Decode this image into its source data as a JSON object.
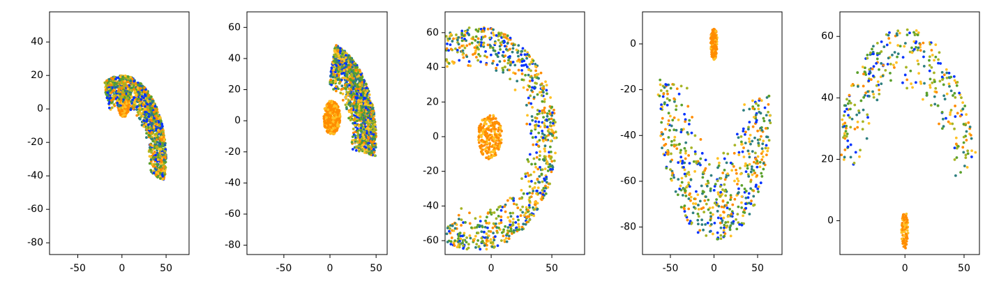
{
  "palette": [
    "#0433ff",
    "#ff8c00",
    "#2e7f7f",
    "#5aa02c",
    "#a6b425",
    "#ffc125"
  ],
  "chart_data": [
    {
      "type": "scatter",
      "title": "",
      "xlabel": "",
      "ylabel": "",
      "xlim": [
        -82,
        76
      ],
      "ylim": [
        -87,
        58
      ],
      "xticks": [
        -50,
        0,
        50
      ],
      "yticks": [
        -80,
        -60,
        -40,
        -20,
        0,
        20,
        40
      ],
      "grid": false,
      "shape": {
        "kind": "horseshoe",
        "center": [
          0,
          -30
        ],
        "radius_inner": 30,
        "radius_outer": 50,
        "y_scale": 1.0,
        "arc_start_deg": -15,
        "arc_end_deg": 115,
        "cluster_center": [
          2,
          5
        ],
        "cluster_radius": [
          7,
          10
        ],
        "point_count": 1700
      },
      "notes": "Dense ring of points opening toward upper-right, with compact orange cluster near origin."
    },
    {
      "type": "scatter",
      "title": "",
      "xlabel": "",
      "ylabel": "",
      "xlim": [
        -90,
        62
      ],
      "ylim": [
        -86,
        70
      ],
      "xticks": [
        -50,
        0,
        50
      ],
      "yticks": [
        -80,
        -60,
        -40,
        -20,
        0,
        20,
        40,
        60
      ],
      "grid": false,
      "shape": {
        "kind": "horseshoe",
        "center": [
          -10,
          -12
        ],
        "radius_inner": 32,
        "radius_outer": 60,
        "y_scale": 1.05,
        "arc_start_deg": -10,
        "arc_end_deg": 75,
        "cluster_center": [
          2,
          2
        ],
        "cluster_radius": [
          9,
          11
        ],
        "point_count": 1800
      },
      "notes": "Large C-shaped distribution opening toward right."
    },
    {
      "type": "scatter",
      "title": "",
      "xlabel": "",
      "ylabel": "",
      "xlim": [
        -38,
        77
      ],
      "ylim": [
        -68,
        72
      ],
      "xticks": [
        0,
        50
      ],
      "yticks": [
        -60,
        -40,
        -20,
        0,
        20,
        40,
        60
      ],
      "grid": false,
      "shape": {
        "kind": "crescent",
        "center": [
          -12,
          -1
        ],
        "radius_inner": 42,
        "radius_outer": 66,
        "y_scale": 0.98,
        "arc_start_deg": -115,
        "arc_end_deg": 120,
        "cluster_center": [
          -1,
          0
        ],
        "cluster_radius": [
          10,
          13
        ],
        "point_count": 1100
      },
      "notes": "Crescent wrapping the orange cluster, opening to the left."
    },
    {
      "type": "scatter",
      "title": "",
      "xlabel": "",
      "ylabel": "",
      "xlim": [
        -82,
        78
      ],
      "ylim": [
        -92,
        14
      ],
      "xticks": [
        -50,
        0,
        50
      ],
      "yticks": [
        -80,
        -60,
        -40,
        -20,
        0
      ],
      "grid": false,
      "shape": {
        "kind": "u-curve",
        "center": [
          0,
          -20
        ],
        "radius_inner": 25,
        "radius_outer": 65,
        "y_scale": 1.0,
        "arc_start_deg": 175,
        "arc_end_deg": 365,
        "cluster_center": [
          0,
          0
        ],
        "cluster_radius": [
          4,
          7
        ],
        "point_count": 700
      },
      "notes": "U-shaped band of points with isolated orange cluster at top center."
    },
    {
      "type": "scatter",
      "title": "",
      "xlabel": "",
      "ylabel": "",
      "xlim": [
        -55,
        63
      ],
      "ylim": [
        -11,
        68
      ],
      "xticks": [
        0,
        50
      ],
      "yticks": [
        0,
        20,
        40,
        60
      ],
      "grid": false,
      "shape": {
        "kind": "arch",
        "center": [
          0,
          0
        ],
        "radius_inner": 40,
        "radius_outer": 64,
        "y_scale": 0.95,
        "arc_start_deg": 18,
        "arc_end_deg": 160,
        "cluster_center": [
          0,
          -3
        ],
        "cluster_radius": [
          3,
          6
        ],
        "point_count": 430
      },
      "notes": "Arch-like band of points above a small orange cluster near origin."
    }
  ]
}
